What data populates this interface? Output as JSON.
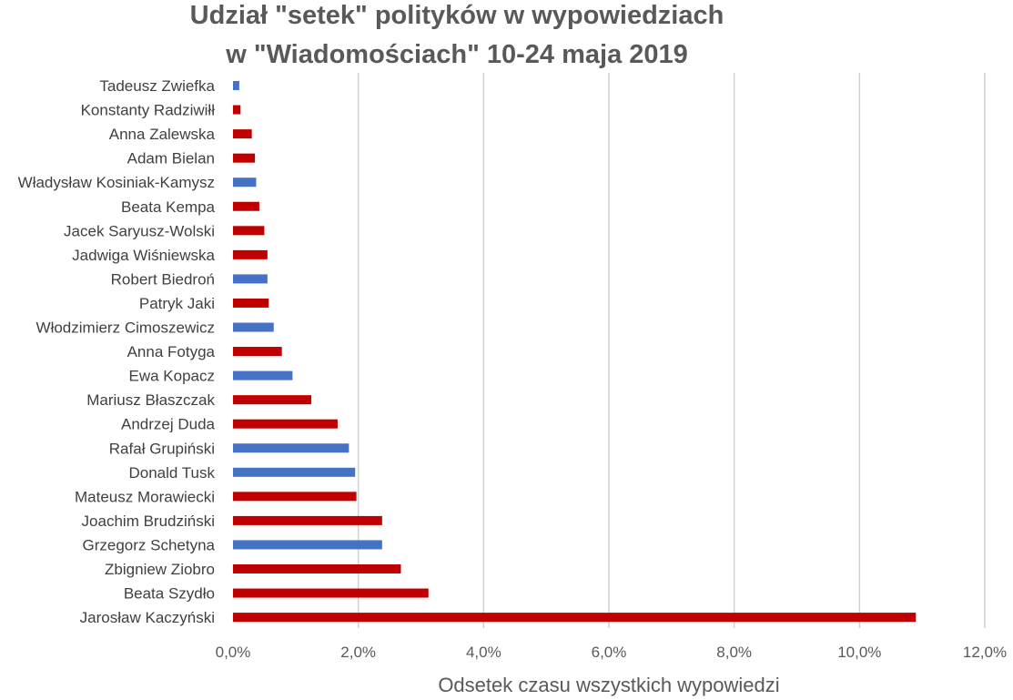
{
  "chart_data": {
    "type": "bar",
    "orientation": "horizontal",
    "title": [
      "Udział \"setek\" polityków w wypowiedziach",
      "w \"Wiadomościach\" 10-24 maja 2019"
    ],
    "xlabel": "Odsetek czasu wszystkich wypowiedzi",
    "ylabel": "",
    "xlim": [
      0,
      12
    ],
    "xticks": [
      0,
      2,
      4,
      6,
      8,
      10,
      12
    ],
    "xtick_labels": [
      "0,0%",
      "2,0%",
      "4,0%",
      "6,0%",
      "8,0%",
      "10,0%",
      "12,0%"
    ],
    "grid": "vertical",
    "colors": {
      "red": "#c00000",
      "blue": "#4472c4"
    },
    "categories": [
      "Tadeusz Zwiefka",
      "Konstanty Radziwiłł",
      "Anna Zalewska",
      "Adam Bielan",
      "Władysław Kosiniak-Kamysz",
      "Beata Kempa",
      "Jacek Saryusz-Wolski",
      "Jadwiga Wiśniewska",
      "Robert Biedroń",
      "Patryk Jaki",
      "Włodzimierz Cimoszewicz",
      "Anna Fotyga",
      "Ewa Kopacz",
      "Mariusz Błaszczak",
      "Andrzej Duda",
      "Rafał Grupiński",
      "Donald Tusk",
      "Mateusz Morawiecki",
      "Joachim Brudziński",
      "Grzegorz Schetyna",
      "Zbigniew Ziobro",
      "Beata Szydło",
      "Jarosław Kaczyński"
    ],
    "values": [
      0.1,
      0.12,
      0.3,
      0.35,
      0.37,
      0.42,
      0.5,
      0.55,
      0.55,
      0.57,
      0.65,
      0.78,
      0.95,
      1.25,
      1.67,
      1.85,
      1.95,
      1.97,
      2.38,
      2.38,
      2.68,
      3.12,
      10.9
    ],
    "bar_colors": [
      "blue",
      "red",
      "red",
      "red",
      "blue",
      "red",
      "red",
      "red",
      "blue",
      "red",
      "blue",
      "red",
      "blue",
      "red",
      "red",
      "blue",
      "blue",
      "red",
      "red",
      "blue",
      "red",
      "red",
      "red"
    ]
  }
}
